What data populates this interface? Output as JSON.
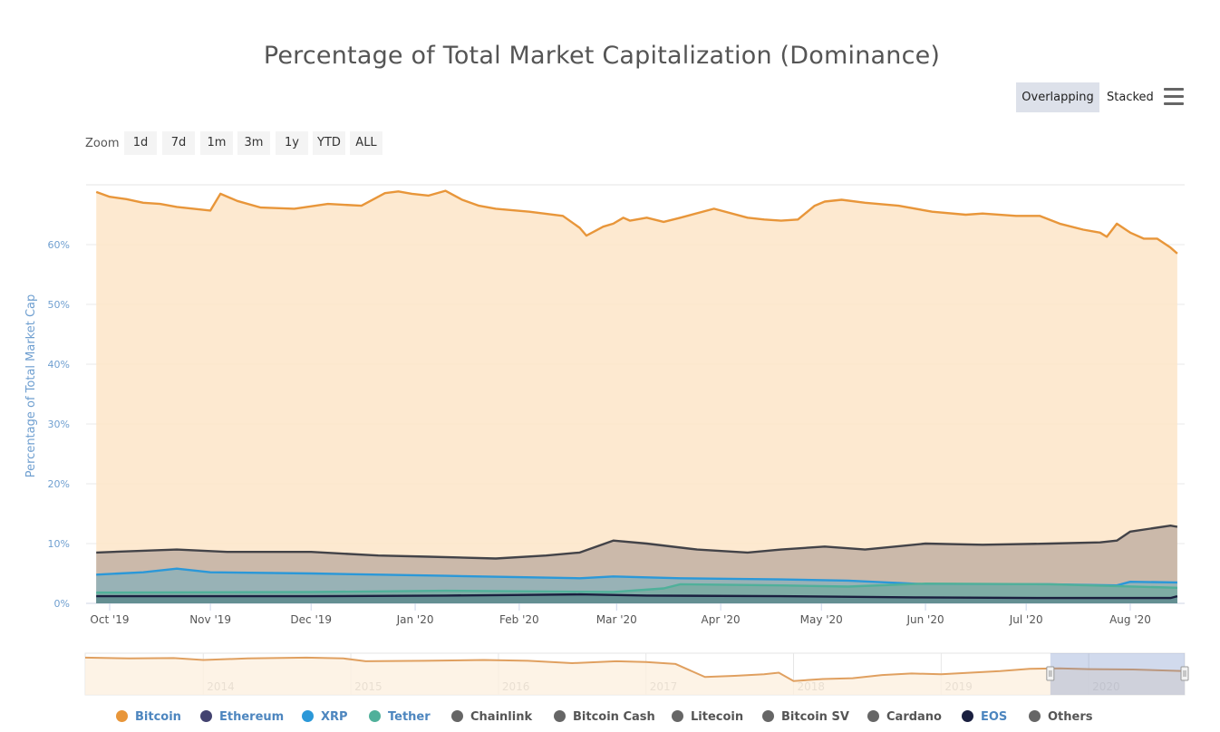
{
  "header": {
    "mode_buttons": {
      "overlapping": "Overlapping",
      "stacked": "Stacked"
    },
    "menu_icon": "hamburger-menu-icon"
  },
  "zoom": {
    "label": "Zoom",
    "options": [
      "1d",
      "7d",
      "1m",
      "3m",
      "1y",
      "YTD",
      "ALL"
    ]
  },
  "chart_data": {
    "type": "area",
    "title": "Percentage of Total Market Capitalization (Dominance)",
    "ylabel": "Percentage of Total Market Cap",
    "xlabel": "",
    "ylim": [
      0,
      70
    ],
    "yticks": [
      0,
      10,
      20,
      30,
      40,
      50,
      60
    ],
    "ytick_labels": [
      "0%",
      "10%",
      "20%",
      "30%",
      "40%",
      "50%",
      "60%"
    ],
    "xlim": [
      0,
      320
    ],
    "xticks": [
      {
        "label": "Oct '19",
        "day": 0
      },
      {
        "label": "Nov '19",
        "day": 30
      },
      {
        "label": "Dec '19",
        "day": 60
      },
      {
        "label": "Jan '20",
        "day": 91
      },
      {
        "label": "Feb '20",
        "day": 122
      },
      {
        "label": "Mar '20",
        "day": 151
      },
      {
        "label": "Apr '20",
        "day": 182
      },
      {
        "label": "May '20",
        "day": 212
      },
      {
        "label": "Jun '20",
        "day": 243
      },
      {
        "label": "Jul '20",
        "day": 273
      },
      {
        "label": "Aug '20",
        "day": 304
      }
    ],
    "x_note": "x values are days since 2019-09-29 (first tick 'Oct '19' at day 0)",
    "series": [
      {
        "name": "Bitcoin",
        "color": "#e8963a",
        "fill": "#fde5c8",
        "x": [
          -4,
          0,
          5,
          10,
          15,
          20,
          25,
          30,
          33,
          38,
          45,
          55,
          65,
          75,
          82,
          86,
          90,
          95,
          100,
          105,
          110,
          115,
          125,
          135,
          140,
          142,
          147,
          150,
          153,
          155,
          160,
          165,
          170,
          180,
          190,
          195,
          200,
          205,
          210,
          213,
          218,
          225,
          235,
          245,
          255,
          260,
          270,
          277,
          283,
          290,
          295,
          297,
          300,
          304,
          308,
          312,
          316,
          318
        ],
        "y": [
          68.8,
          68.0,
          67.6,
          67.0,
          66.8,
          66.3,
          66.0,
          65.7,
          68.5,
          67.3,
          66.2,
          66.0,
          66.8,
          66.5,
          68.6,
          68.9,
          68.5,
          68.2,
          69.0,
          67.5,
          66.5,
          66.0,
          65.5,
          64.8,
          62.8,
          61.5,
          63.0,
          63.5,
          64.5,
          64.0,
          64.5,
          63.8,
          64.5,
          66.0,
          64.5,
          64.2,
          64.0,
          64.2,
          66.5,
          67.2,
          67.5,
          67.0,
          66.5,
          65.5,
          65.0,
          65.2,
          64.8,
          64.8,
          63.5,
          62.5,
          62.0,
          61.3,
          63.5,
          62.0,
          61.0,
          61.0,
          59.5,
          58.5
        ]
      },
      {
        "name": "Ethereum",
        "color": "#434348",
        "fill": "#c2b0a3",
        "x": [
          -4,
          10,
          20,
          35,
          60,
          80,
          95,
          115,
          130,
          140,
          150,
          160,
          175,
          190,
          200,
          213,
          225,
          243,
          260,
          280,
          295,
          300,
          304,
          310,
          316,
          318
        ],
        "y": [
          8.5,
          8.8,
          9.0,
          8.6,
          8.6,
          8.0,
          7.8,
          7.5,
          8.0,
          8.5,
          10.5,
          10.0,
          9.0,
          8.5,
          9.0,
          9.5,
          9.0,
          10.0,
          9.8,
          10.0,
          10.2,
          10.5,
          12.0,
          12.5,
          13.0,
          12.8
        ]
      },
      {
        "name": "XRP",
        "color": "#2b98d8",
        "fill": "#8fb0b8",
        "x": [
          -4,
          10,
          20,
          30,
          60,
          100,
          140,
          150,
          170,
          200,
          220,
          243,
          280,
          300,
          304,
          318
        ],
        "y": [
          4.8,
          5.2,
          5.8,
          5.2,
          5.0,
          4.6,
          4.2,
          4.5,
          4.2,
          4.0,
          3.8,
          3.2,
          3.2,
          3.0,
          3.6,
          3.5
        ]
      },
      {
        "name": "Tether",
        "color": "#50b09a",
        "fill": "#79aaa2",
        "x": [
          -4,
          60,
          100,
          150,
          165,
          170,
          200,
          220,
          243,
          280,
          318
        ],
        "y": [
          1.8,
          1.9,
          2.1,
          1.9,
          2.5,
          3.2,
          3.0,
          2.8,
          3.3,
          3.2,
          2.6
        ]
      },
      {
        "name": "EOS",
        "color": "#1a1f3f",
        "fill": "#5f8a8e",
        "x": [
          -4,
          60,
          100,
          120,
          140,
          160,
          200,
          240,
          280,
          316,
          318
        ],
        "y": [
          1.2,
          1.2,
          1.3,
          1.4,
          1.5,
          1.3,
          1.2,
          1.0,
          0.9,
          0.9,
          1.2
        ]
      }
    ],
    "navigator": {
      "year_labels": [
        "2014",
        "2015",
        "2016",
        "2017",
        "2018",
        "2019",
        "2020"
      ],
      "years": [
        2014,
        2015,
        2016,
        2017,
        2018,
        2019,
        2020
      ],
      "range_years": [
        2013.2,
        2020.65
      ],
      "selected_range_years": [
        2019.74,
        2020.65
      ],
      "bitcoin_x": [
        2013.2,
        2013.5,
        2013.8,
        2014.0,
        2014.3,
        2014.7,
        2014.95,
        2015.1,
        2015.5,
        2015.9,
        2016.2,
        2016.5,
        2016.8,
        2017.0,
        2017.2,
        2017.4,
        2017.6,
        2017.8,
        2017.9,
        2018.0,
        2018.2,
        2018.4,
        2018.6,
        2018.8,
        2019.0,
        2019.2,
        2019.4,
        2019.6,
        2019.8,
        2020.0,
        2020.3,
        2020.65
      ],
      "bitcoin_y": [
        94,
        92,
        93,
        88,
        92,
        94,
        92,
        85,
        86,
        88,
        86,
        80,
        85,
        83,
        78,
        45,
        48,
        52,
        56,
        35,
        40,
        42,
        50,
        54,
        52,
        56,
        60,
        66,
        67,
        65,
        64,
        60
      ]
    },
    "legend": [
      {
        "name": "Bitcoin",
        "color": "#e8963a",
        "text_color": "#4d86bf"
      },
      {
        "name": "Ethereum",
        "color": "#434370",
        "text_color": "#4d86bf"
      },
      {
        "name": "XRP",
        "color": "#2b98d8",
        "text_color": "#4d86bf"
      },
      {
        "name": "Tether",
        "color": "#50b09a",
        "text_color": "#4d86bf"
      },
      {
        "name": "Chainlink",
        "color": "#666666",
        "text_color": "#555555"
      },
      {
        "name": "Bitcoin Cash",
        "color": "#666666",
        "text_color": "#555555"
      },
      {
        "name": "Litecoin",
        "color": "#666666",
        "text_color": "#555555"
      },
      {
        "name": "Bitcoin SV",
        "color": "#666666",
        "text_color": "#555555"
      },
      {
        "name": "Cardano",
        "color": "#666666",
        "text_color": "#555555"
      },
      {
        "name": "EOS",
        "color": "#1a1f3f",
        "text_color": "#4d86bf"
      },
      {
        "name": "Others",
        "color": "#666666",
        "text_color": "#555555"
      }
    ]
  }
}
